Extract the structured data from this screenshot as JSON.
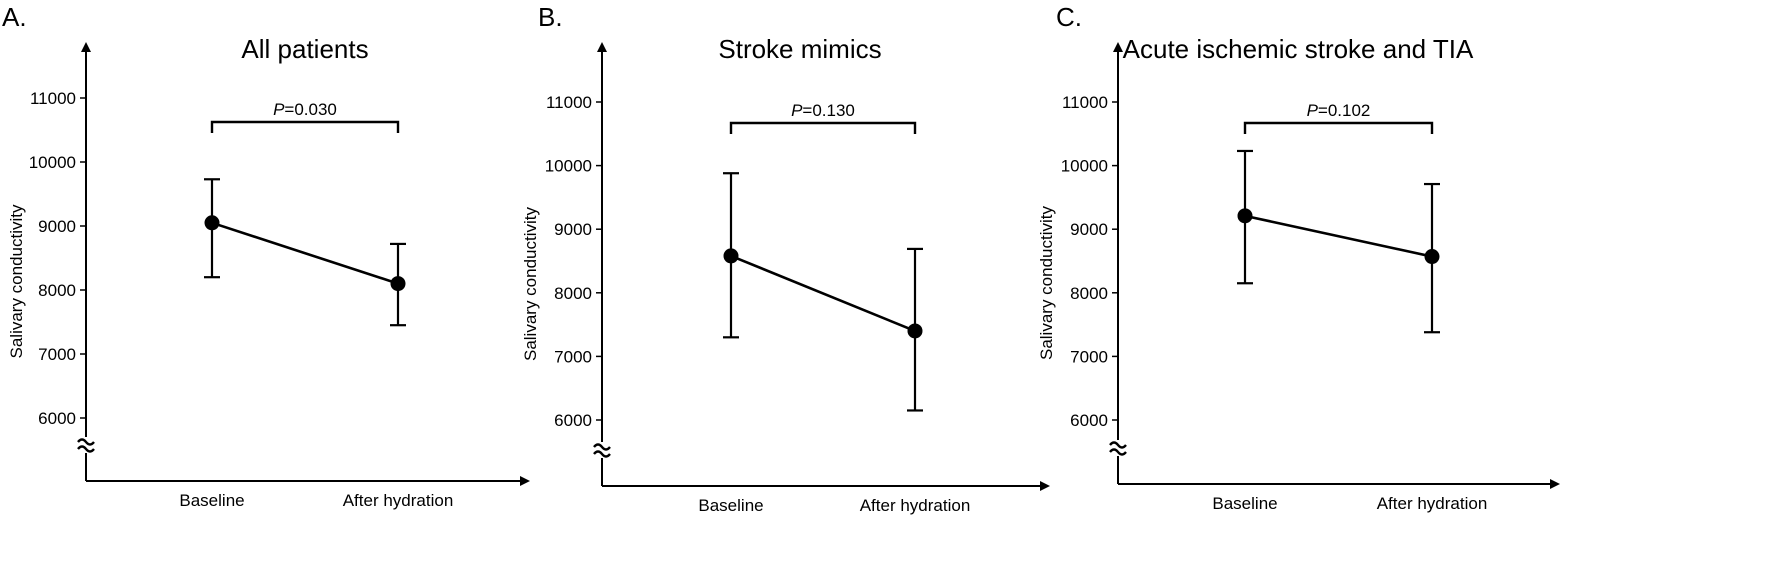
{
  "chart_data": [
    {
      "type": "line",
      "panel_label": "A.",
      "title": "All patients",
      "ylabel": "Salivary conductivity",
      "xlabel": "",
      "categories": [
        "Baseline",
        "After hydration"
      ],
      "yticks": [
        6000,
        7000,
        8000,
        9000,
        10000,
        11000
      ],
      "ylim": [
        5000,
        12000
      ],
      "axis_break": true,
      "series": [
        {
          "values": [
            9050,
            8100
          ],
          "error_low": [
            8200,
            7450
          ],
          "error_high": [
            9730,
            8720
          ]
        }
      ],
      "annotation": {
        "italic": "P",
        "rest": "=0.030"
      }
    },
    {
      "type": "line",
      "panel_label": "B.",
      "title": "Stroke mimics",
      "ylabel": "Salivary conductivity",
      "xlabel": "",
      "categories": [
        "Baseline",
        "After hydration"
      ],
      "yticks": [
        6000,
        7000,
        8000,
        9000,
        10000,
        11000
      ],
      "ylim": [
        5000,
        12000
      ],
      "axis_break": true,
      "series": [
        {
          "values": [
            8580,
            7400
          ],
          "error_low": [
            7300,
            6150
          ],
          "error_high": [
            9880,
            8690
          ]
        }
      ],
      "annotation": {
        "italic": "P",
        "rest": "=0.130"
      }
    },
    {
      "type": "line",
      "panel_label": "C.",
      "title": "Acute ischemic stroke and TIA",
      "ylabel": "Salivary conductivity",
      "xlabel": "",
      "categories": [
        "Baseline",
        "After hydration"
      ],
      "yticks": [
        6000,
        7000,
        8000,
        9000,
        10000,
        11000
      ],
      "ylim": [
        5000,
        12000
      ],
      "axis_break": true,
      "series": [
        {
          "values": [
            9210,
            8570
          ],
          "error_low": [
            8150,
            7380
          ],
          "error_high": [
            10230,
            9710
          ]
        }
      ],
      "annotation": {
        "italic": "P",
        "rest": "=0.102"
      }
    }
  ]
}
